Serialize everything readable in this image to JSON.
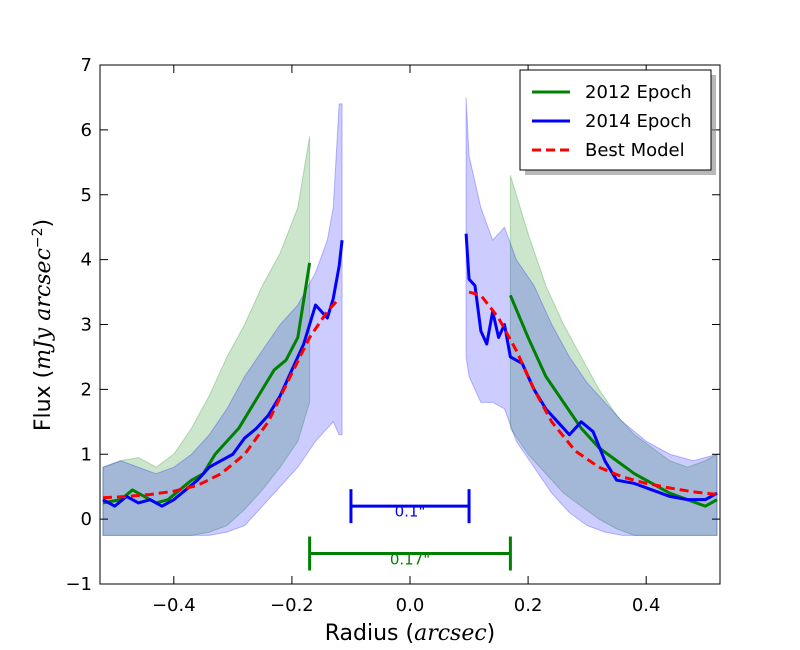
{
  "chart_data": {
    "type": "line",
    "xlabel_text": "Radius",
    "xlabel_unit": "arcsec",
    "ylabel_text": "Flux",
    "ylabel_unit": "mJy arcsec",
    "ylabel_exponent": "−2",
    "xlim": [
      -0.525,
      0.525
    ],
    "ylim": [
      -1,
      7
    ],
    "xticks": [
      -0.4,
      -0.2,
      0.0,
      0.2,
      0.4
    ],
    "xtick_labels": [
      "−0.4",
      "−0.2",
      "0.0",
      "0.2",
      "0.4"
    ],
    "yticks": [
      -1,
      0,
      1,
      2,
      3,
      4,
      5,
      6,
      7
    ],
    "ytick_labels": [
      "−1",
      "0",
      "1",
      "2",
      "3",
      "4",
      "5",
      "6",
      "7"
    ],
    "legend_position": "top-right",
    "series": [
      {
        "name": "2012 Epoch",
        "color": "#008000",
        "style": "solid",
        "segments": [
          {
            "x": [
              -0.52,
              -0.49,
              -0.47,
              -0.45,
              -0.43,
              -0.41,
              -0.39,
              -0.37,
              -0.35,
              -0.33,
              -0.31,
              -0.29,
              -0.27,
              -0.25,
              -0.23,
              -0.21,
              -0.19,
              -0.17
            ],
            "y": [
              0.25,
              0.3,
              0.45,
              0.35,
              0.25,
              0.3,
              0.45,
              0.6,
              0.7,
              1.0,
              1.2,
              1.4,
              1.7,
              2.0,
              2.3,
              2.45,
              2.8,
              3.95
            ]
          },
          {
            "x": [
              0.17,
              0.2,
              0.23,
              0.26,
              0.29,
              0.32,
              0.35,
              0.38,
              0.41,
              0.44,
              0.47,
              0.5,
              0.52
            ],
            "y": [
              3.45,
              2.8,
              2.2,
              1.8,
              1.4,
              1.1,
              0.9,
              0.7,
              0.55,
              0.4,
              0.3,
              0.2,
              0.3
            ]
          }
        ]
      },
      {
        "name": "2014 Epoch",
        "color": "#0000ff",
        "style": "solid",
        "segments": [
          {
            "x": [
              -0.52,
              -0.5,
              -0.48,
              -0.46,
              -0.44,
              -0.42,
              -0.4,
              -0.38,
              -0.36,
              -0.34,
              -0.32,
              -0.3,
              -0.28,
              -0.26,
              -0.24,
              -0.22,
              -0.2,
              -0.18,
              -0.16,
              -0.14,
              -0.13,
              -0.12,
              -0.115
            ],
            "y": [
              0.3,
              0.2,
              0.35,
              0.25,
              0.3,
              0.2,
              0.3,
              0.45,
              0.6,
              0.8,
              0.9,
              1.0,
              1.25,
              1.4,
              1.6,
              1.9,
              2.3,
              2.7,
              3.3,
              3.1,
              3.4,
              3.9,
              4.3
            ]
          },
          {
            "x": [
              0.095,
              0.1,
              0.11,
              0.12,
              0.13,
              0.14,
              0.15,
              0.16,
              0.17,
              0.19,
              0.21,
              0.23,
              0.25,
              0.27,
              0.29,
              0.31,
              0.33,
              0.35,
              0.38,
              0.41,
              0.44,
              0.47,
              0.5,
              0.52
            ],
            "y": [
              4.4,
              3.7,
              3.6,
              2.9,
              2.7,
              3.2,
              2.8,
              3.0,
              2.5,
              2.4,
              2.0,
              1.7,
              1.5,
              1.3,
              1.5,
              1.35,
              0.9,
              0.6,
              0.55,
              0.45,
              0.35,
              0.3,
              0.3,
              0.4
            ]
          }
        ]
      },
      {
        "name": "Best Model",
        "color": "#ff0000",
        "style": "dashed",
        "segments": [
          {
            "x": [
              -0.52,
              -0.48,
              -0.44,
              -0.4,
              -0.36,
              -0.32,
              -0.28,
              -0.24,
              -0.2,
              -0.17,
              -0.14,
              -0.12
            ],
            "y": [
              0.33,
              0.35,
              0.38,
              0.43,
              0.52,
              0.7,
              1.0,
              1.5,
              2.25,
              2.8,
              3.2,
              3.4
            ]
          },
          {
            "x": [
              0.1,
              0.12,
              0.15,
              0.18,
              0.21,
              0.24,
              0.28,
              0.32,
              0.36,
              0.4,
              0.44,
              0.48,
              0.52
            ],
            "y": [
              3.5,
              3.45,
              3.1,
              2.6,
              2.0,
              1.5,
              1.05,
              0.8,
              0.65,
              0.55,
              0.48,
              0.42,
              0.38
            ]
          }
        ]
      }
    ],
    "bands": [
      {
        "name": "2012 Epoch range",
        "color": "#008000",
        "opacity": 0.2,
        "segments": [
          {
            "x": [
              -0.52,
              -0.49,
              -0.46,
              -0.43,
              -0.4,
              -0.37,
              -0.34,
              -0.31,
              -0.28,
              -0.25,
              -0.22,
              -0.19,
              -0.17
            ],
            "upper": [
              0.8,
              0.9,
              0.95,
              0.8,
              1.0,
              1.4,
              1.9,
              2.5,
              3.0,
              3.6,
              4.1,
              4.8,
              5.9
            ],
            "lower": [
              -0.25,
              -0.25,
              -0.25,
              -0.25,
              -0.25,
              -0.25,
              -0.2,
              -0.1,
              0.15,
              0.45,
              0.8,
              1.2,
              1.8
            ]
          },
          {
            "x": [
              0.17,
              0.2,
              0.23,
              0.26,
              0.29,
              0.32,
              0.35,
              0.38,
              0.41,
              0.44,
              0.47,
              0.5,
              0.52
            ],
            "upper": [
              5.3,
              4.4,
              3.6,
              3.0,
              2.5,
              2.0,
              1.6,
              1.3,
              1.1,
              0.9,
              0.8,
              0.9,
              1.0
            ],
            "lower": [
              1.4,
              1.0,
              0.7,
              0.4,
              0.2,
              0.0,
              -0.15,
              -0.25,
              -0.25,
              -0.25,
              -0.25,
              -0.25,
              -0.25
            ]
          }
        ]
      },
      {
        "name": "2014 Epoch range",
        "color": "#0000ff",
        "opacity": 0.2,
        "segments": [
          {
            "x": [
              -0.52,
              -0.49,
              -0.46,
              -0.43,
              -0.4,
              -0.37,
              -0.34,
              -0.31,
              -0.28,
              -0.25,
              -0.22,
              -0.19,
              -0.16,
              -0.14,
              -0.13,
              -0.12,
              -0.115
            ],
            "upper": [
              0.8,
              0.9,
              0.8,
              0.7,
              0.8,
              1.0,
              1.3,
              1.7,
              2.2,
              2.6,
              3.0,
              3.3,
              3.8,
              4.3,
              4.8,
              6.4,
              6.4
            ],
            "lower": [
              -0.25,
              -0.25,
              -0.25,
              -0.25,
              -0.25,
              -0.25,
              -0.25,
              -0.2,
              -0.1,
              0.2,
              0.5,
              0.8,
              1.2,
              1.4,
              1.5,
              1.3,
              1.3
            ]
          },
          {
            "x": [
              0.095,
              0.1,
              0.12,
              0.14,
              0.16,
              0.18,
              0.21,
              0.24,
              0.27,
              0.3,
              0.33,
              0.36,
              0.4,
              0.44,
              0.48,
              0.52
            ],
            "upper": [
              6.5,
              5.6,
              4.8,
              4.3,
              4.5,
              4.0,
              3.6,
              3.0,
              2.5,
              2.1,
              1.8,
              1.5,
              1.2,
              1.0,
              0.9,
              1.0
            ],
            "lower": [
              2.5,
              2.2,
              1.8,
              1.8,
              1.7,
              1.2,
              0.8,
              0.4,
              0.1,
              -0.1,
              -0.2,
              -0.25,
              -0.25,
              -0.25,
              -0.25,
              -0.25
            ]
          }
        ]
      }
    ],
    "annotations": [
      {
        "name": "blue-scalebar",
        "label": "0.1\"",
        "color": "#0000ff",
        "x1": -0.1,
        "x2": 0.1,
        "y": 0.2,
        "label_y": 0.04
      },
      {
        "name": "green-scalebar",
        "label": "0.17\"",
        "color": "#008000",
        "x1": -0.17,
        "x2": 0.17,
        "y": -0.53,
        "label_y": -0.7
      }
    ]
  }
}
